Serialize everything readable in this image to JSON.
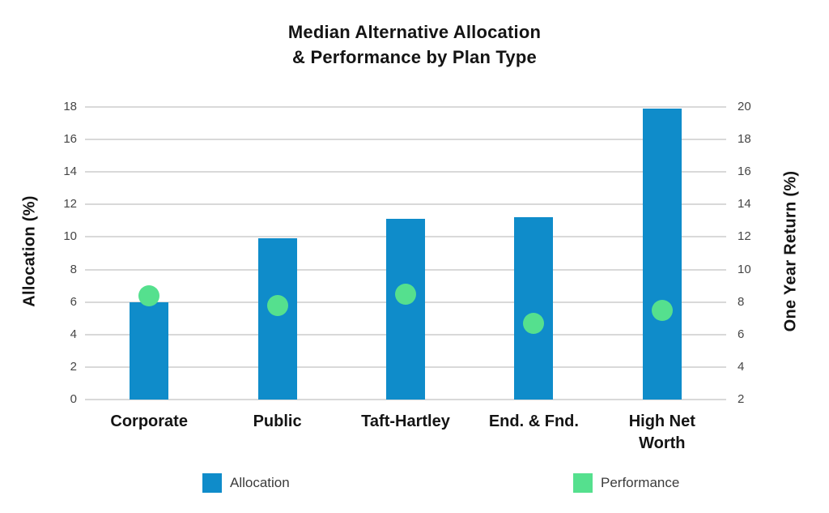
{
  "title": {
    "line1": "Median Alternative Allocation",
    "line2": "& Performance by Plan Type"
  },
  "chart_data": {
    "type": "bar",
    "subtype": "dual-axis bar with scatter overlay",
    "categories": [
      "Corporate",
      "Public",
      "Taft-Hartley",
      "End. & Fnd.",
      "High Net\nWorth"
    ],
    "series": [
      {
        "name": "Allocation",
        "render": "bar",
        "axis": "left",
        "color": "#0f8cca",
        "values": [
          6.0,
          9.9,
          11.1,
          11.2,
          17.9
        ]
      },
      {
        "name": "Performance",
        "render": "scatter",
        "axis": "right",
        "color": "#55e08e",
        "values": [
          8.4,
          7.8,
          8.5,
          6.7,
          7.5
        ]
      }
    ],
    "title": "Median Alternative Allocation & Performance by Plan Type",
    "left_axis": {
      "label": "Allocation (%)",
      "min": 0,
      "max": 18,
      "step": 2,
      "ticks": [
        "0",
        "2",
        "4",
        "6",
        "8",
        "10",
        "12",
        "14",
        "16",
        "18"
      ]
    },
    "right_axis": {
      "label": "One Year Return (%)",
      "min": 2,
      "max": 20,
      "step": 2,
      "ticks": [
        "2",
        "4",
        "6",
        "8",
        "10",
        "12",
        "14",
        "16",
        "18",
        "20"
      ]
    },
    "grid": true,
    "gridline_color": "#d9d9d9",
    "legend_position": "bottom"
  },
  "legend": {
    "items": [
      {
        "label": "Allocation",
        "color": "#0f8cca",
        "shape": "square"
      },
      {
        "label": "Performance",
        "color": "#55e08e",
        "shape": "square"
      }
    ]
  }
}
